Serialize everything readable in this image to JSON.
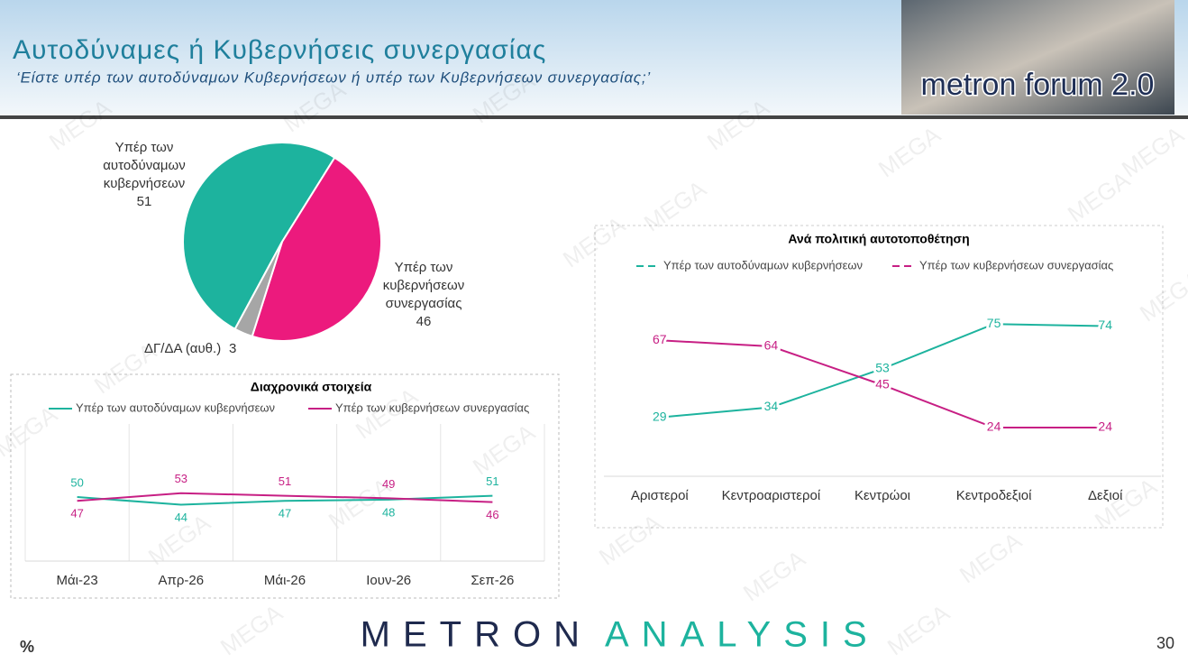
{
  "header": {
    "title": "Αυτοδύναμες ή Κυβερνήσεις συνεργασίας",
    "subtitle": "‘Είστε υπέρ των αυτοδύναμων Κυβερνήσεων ή υπέρ των Κυβερνήσεων συνεργασίας;’",
    "logo": "metron forum 2.0"
  },
  "watermark": "MEGA",
  "chart_data": [
    {
      "type": "pie",
      "categories": [
        "Υπέρ των αυτοδύναμων κυβερνήσεων",
        "Υπέρ των κυβερνήσεων συνεργασίας",
        "ΔΓ/ΔΑ (αυθ.)"
      ],
      "values": [
        51,
        46,
        3
      ],
      "colors": [
        "#1db39e",
        "#ec1a7d",
        "#a6a6a6"
      ]
    },
    {
      "type": "line",
      "title": "Διαχρονικά στοιχεία",
      "categories": [
        "Μάι-23",
        "Απρ-26",
        "Μάι-26",
        "Ιουν-26",
        "Σεπ-26"
      ],
      "series": [
        {
          "name": "Υπέρ των αυτοδύναμων κυβερνήσεων",
          "color": "#1db39e",
          "values": [
            50,
            44,
            47,
            48,
            51
          ]
        },
        {
          "name": "Υπέρ των κυβερνήσεων συνεργασίας",
          "color": "#c71f84",
          "values": [
            47,
            53,
            51,
            49,
            46
          ]
        }
      ],
      "ylim": [
        0,
        100
      ],
      "grid": true
    },
    {
      "type": "line",
      "title": "Ανά πολιτική αυτοτοποθέτηση",
      "categories": [
        "Αριστεροί",
        "Κεντροαριστεροί",
        "Κεντρώοι",
        "Κεντροδεξιοί",
        "Δεξιοί"
      ],
      "series": [
        {
          "name": "Υπέρ των αυτοδύναμων κυβερνήσεων",
          "color": "#1db39e",
          "values": [
            29,
            34,
            53,
            75,
            74
          ]
        },
        {
          "name": "Υπέρ των κυβερνήσεων συνεργασίας",
          "color": "#c71f84",
          "values": [
            67,
            64,
            45,
            24,
            24
          ]
        }
      ],
      "ylim": [
        0,
        100
      ],
      "grid": false
    }
  ],
  "footer": {
    "brand_1": "METRON",
    "brand_2": "ANALYSIS",
    "unit": "%",
    "page": "30"
  }
}
